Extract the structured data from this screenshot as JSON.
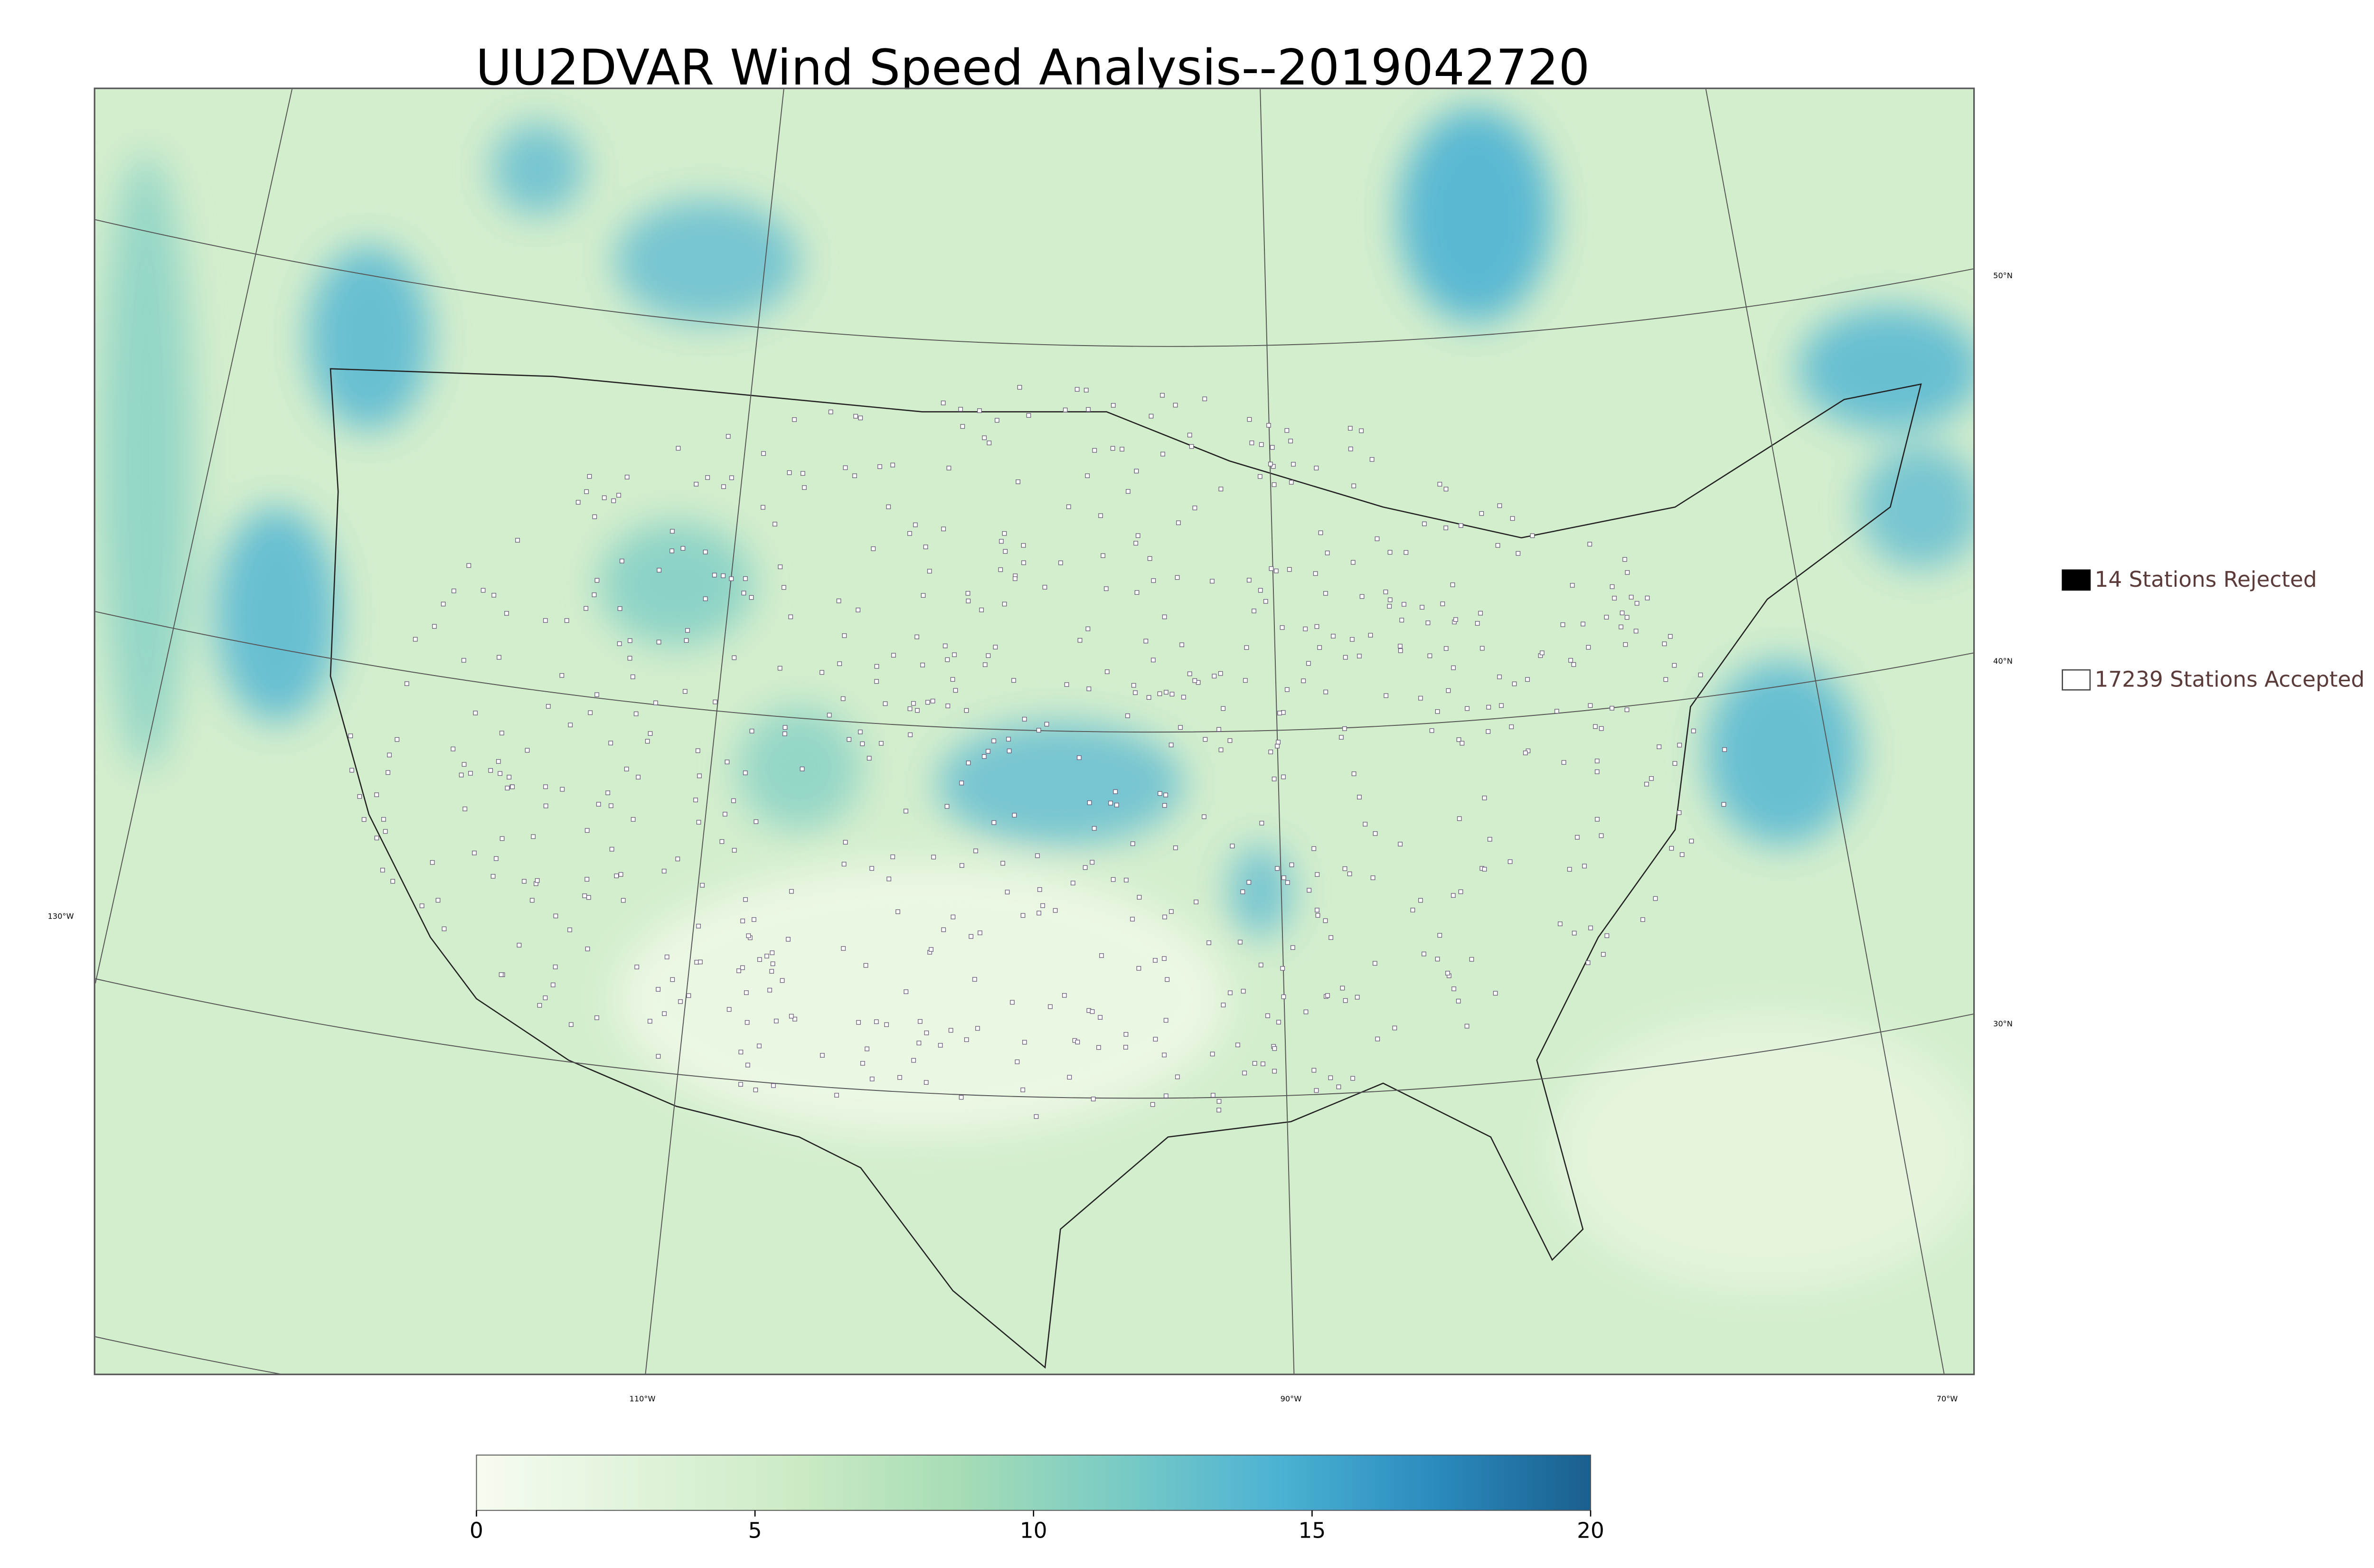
{
  "title": "UU2DVAR Wind Speed Analysis--2019042720",
  "legend": {
    "items": [
      {
        "label": "14 Stations Rejected",
        "color": "#000000"
      },
      {
        "label": "17239 Stations Accepted",
        "color": "#ffffff"
      }
    ]
  },
  "latitude_labels": [
    "50°N",
    "40°N",
    "30°N"
  ],
  "longitude_labels": [
    "130°W",
    "110°W",
    "90°W",
    "70°W"
  ],
  "colorbar": {
    "lim": [
      0,
      20
    ],
    "ticks": [
      0,
      5,
      10,
      15,
      20
    ],
    "colors": [
      "#f7fcf0",
      "#e0f3db",
      "#ccebc5",
      "#a8ddb5",
      "#7bccc4",
      "#4eb3d3",
      "#2b8cbe",
      "#1a5f8e"
    ]
  }
}
